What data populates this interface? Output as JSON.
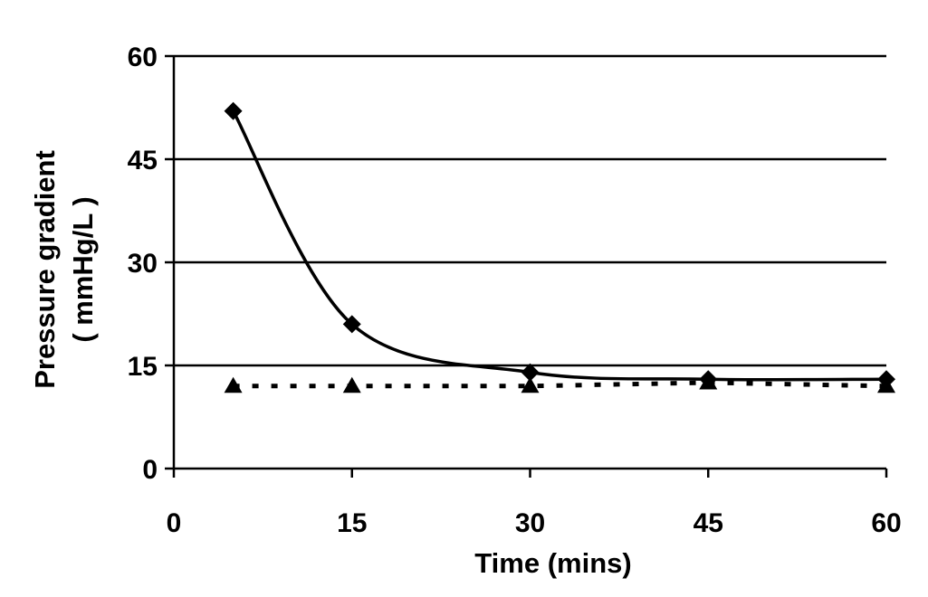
{
  "chart_data": {
    "type": "line",
    "xlabel": "Time (mins)",
    "ylabel_line1": "Pressure gradient",
    "ylabel_line2": "( mmHg/L )",
    "xlim": [
      0,
      60
    ],
    "ylim": [
      0,
      60
    ],
    "xticks": [
      0,
      15,
      30,
      45,
      60
    ],
    "yticks": [
      0,
      15,
      30,
      45,
      60
    ],
    "grid": "horizontal",
    "legend": "none",
    "series": [
      {
        "marker": "diamond",
        "line_style": "solid-smooth",
        "color": "#000000",
        "x": [
          5,
          15,
          30,
          45,
          60
        ],
        "y": [
          52,
          21,
          14,
          13,
          13
        ]
      },
      {
        "marker": "triangle",
        "line_style": "dotted",
        "color": "#000000",
        "x": [
          5,
          15,
          30,
          45,
          60
        ],
        "y": [
          12,
          12,
          12,
          12.5,
          12
        ]
      }
    ]
  }
}
